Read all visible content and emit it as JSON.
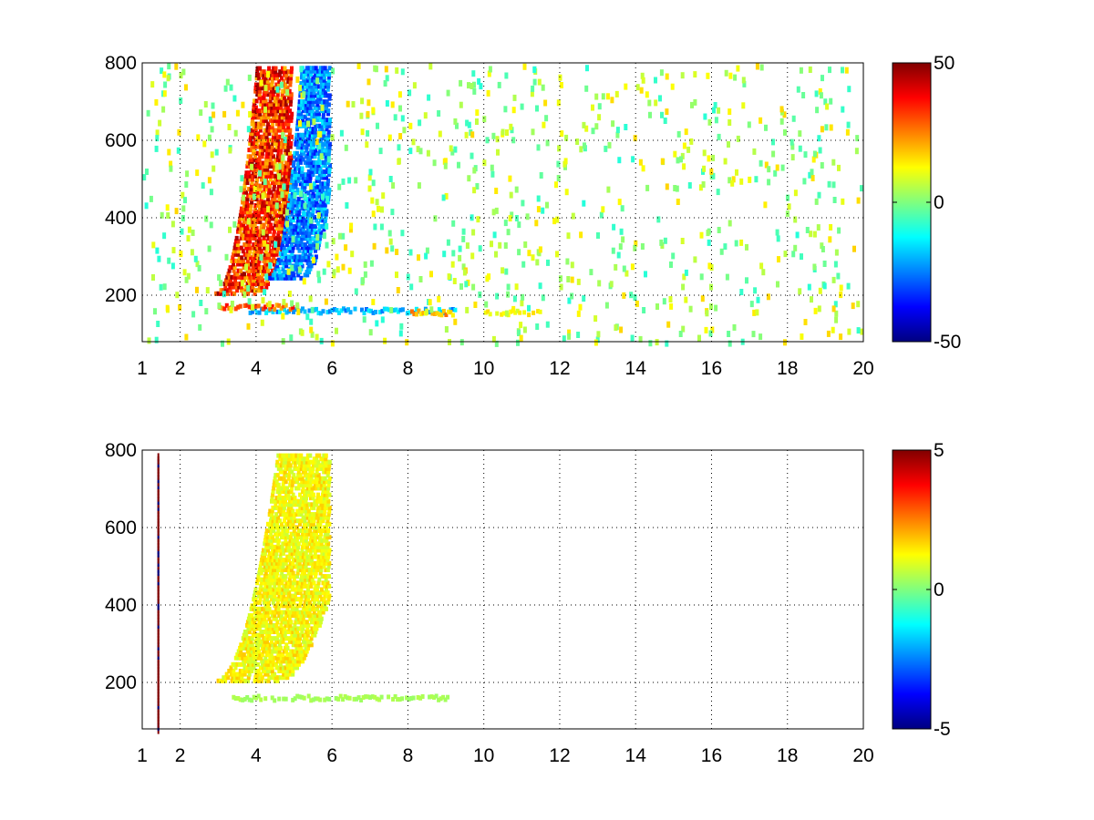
{
  "chart_data": [
    {
      "type": "heatmap",
      "panel": "top",
      "x_ticks": [
        1,
        2,
        4,
        6,
        8,
        10,
        12,
        14,
        16,
        18,
        20
      ],
      "y_ticks": [
        200,
        400,
        600,
        800
      ],
      "x_range": [
        1,
        20
      ],
      "y_range": [
        80,
        800
      ],
      "grid": true,
      "colormap": "jet",
      "colorbar": {
        "min": -50,
        "max": 50,
        "ticks": [
          50,
          0,
          -50
        ],
        "tick_labels": [
          "50",
          "0",
          "-50"
        ]
      },
      "features": [
        {
          "description": "positive curved band",
          "x_from": 2.9,
          "x_to": 4.9,
          "y_from": 210,
          "y_to": 800,
          "value": 40
        },
        {
          "description": "negative curved band",
          "x_from": 4.3,
          "x_to": 5.9,
          "y_from": 250,
          "y_to": 800,
          "value": -30
        },
        {
          "description": "horizontal negative streak",
          "x_from": 3.8,
          "x_to": 9.2,
          "y": 165,
          "value": -25
        },
        {
          "description": "horizontal positive streak",
          "x_from": 3.0,
          "x_to": 5.2,
          "y": 175,
          "value": 35
        },
        {
          "description": "positive streak segment",
          "x_from": 8.0,
          "x_to": 9.2,
          "y": 160,
          "value": 25
        },
        {
          "description": "weak streak segment",
          "x_from": 10.0,
          "x_to": 11.5,
          "y": 160,
          "value": 15
        }
      ]
    },
    {
      "type": "heatmap",
      "panel": "bottom",
      "x_ticks": [
        1,
        2,
        4,
        6,
        8,
        10,
        12,
        14,
        16,
        18,
        20
      ],
      "y_ticks": [
        200,
        400,
        600,
        800
      ],
      "x_range": [
        1,
        20
      ],
      "y_range": [
        80,
        800
      ],
      "grid": true,
      "colormap": "jet",
      "colorbar": {
        "min": -5,
        "max": 5,
        "ticks": [
          5,
          0,
          -5
        ],
        "tick_labels": [
          "5",
          "0",
          "-5"
        ]
      },
      "features": [
        {
          "description": "curved band",
          "x_from": 2.9,
          "x_to": 5.9,
          "y_from": 210,
          "y_to": 800,
          "value": 1.5
        },
        {
          "description": "horizontal streak",
          "x_from": 3.3,
          "x_to": 9.0,
          "y": 165,
          "value": 0.5
        },
        {
          "description": "vertical line at x≈1.4",
          "x": 1.4,
          "y_from": 80,
          "y_to": 800,
          "value": 5
        }
      ]
    }
  ]
}
